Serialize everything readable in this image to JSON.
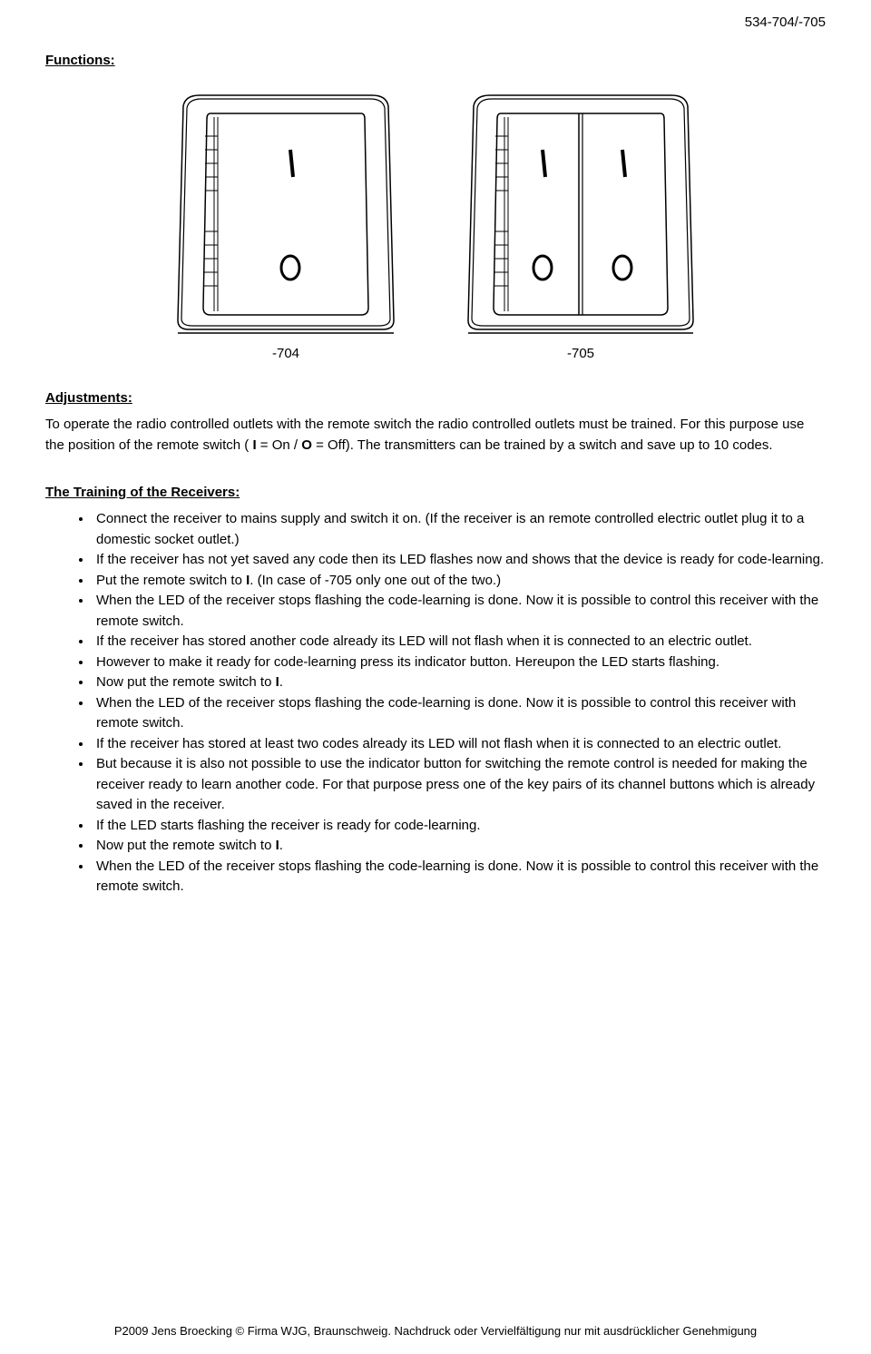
{
  "header_code": "534-704/-705",
  "sections": {
    "functions_title": "Functions:",
    "adjustments_title": "Adjustments:",
    "training_title": "The Training of the Receivers:"
  },
  "diagrams": {
    "left_label": "-704",
    "right_label": "-705"
  },
  "adjustments": {
    "p1_a": "To operate the radio controlled outlets with the remote switch the radio controlled outlets must be trained. For this purpose use the position of the remote switch ( ",
    "p1_b": "I",
    "p1_c": " = On / ",
    "p1_d": "O",
    "p1_e": " = Off). The transmitters can be trained by a switch and save up to 10 codes."
  },
  "bullets": [
    {
      "html": "Connect the receiver to mains supply and switch it on. (If the receiver is an remote controlled electric outlet plug it to a domestic socket outlet.)"
    },
    {
      "html": "If the receiver has not yet saved any code then its LED flashes now and shows that the device is ready for code-learning."
    },
    {
      "html": "Put the remote switch to <b>I</b>. (In case of -705 only one out of the two.)"
    },
    {
      "html": "When the LED of the receiver stops flashing the code-learning is done. Now it is possible to control this receiver with the remote switch."
    },
    {
      "html": "If the receiver has stored another code already its LED will not flash when it is connected to an electric outlet."
    },
    {
      "html": "However to make it ready for code-learning press its indicator button. Hereupon the LED starts flashing."
    },
    {
      "html": "Now put the remote switch to <b>I</b>."
    },
    {
      "html": "When the LED of the receiver stops flashing the code-learning is done. Now it is possible to control this receiver with remote switch."
    },
    {
      "html": "If the receiver has stored at least two codes already its LED will not flash when it is connected to an electric outlet."
    },
    {
      "html": "But because it is also not possible to use the indicator button for switching the remote control is needed for making the receiver ready to learn another code. For that purpose press one of the key pairs of its channel buttons which is already saved in the receiver."
    },
    {
      "html": "If the LED starts flashing the receiver is ready for code-learning."
    },
    {
      "html": "Now put the remote switch to <b>I</b>."
    },
    {
      "html": "When the LED of the receiver stops flashing the code-learning is done. Now it is possible to control this receiver with the remote switch."
    }
  ],
  "footer": "P2009 Jens Broecking ©  Firma WJG, Braunschweig. Nachdruck oder Vervielfältigung  nur mit ausdrücklicher Genehmigung"
}
